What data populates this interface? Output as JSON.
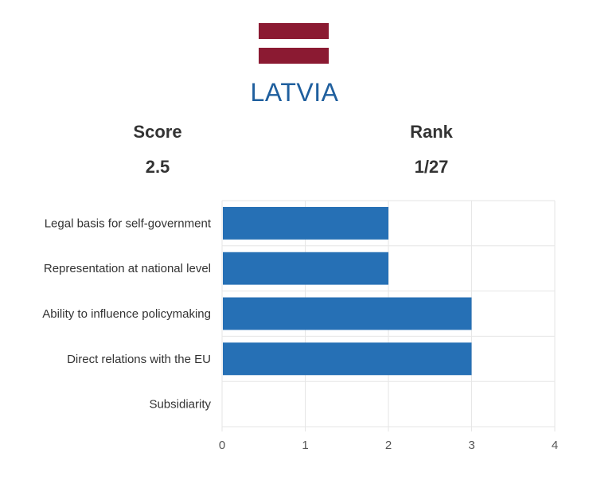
{
  "colors": {
    "flag": "#8b1a32",
    "country_title": "#1f5f9e",
    "bar": "#2670b5",
    "grid": "#e6e6e6",
    "text": "#333333",
    "tick": "#555555"
  },
  "country": "LATVIA",
  "stats": {
    "score_label": "Score",
    "score_value": "2.5",
    "rank_label": "Rank",
    "rank_value": "1/27"
  },
  "chart_data": {
    "type": "bar",
    "orientation": "horizontal",
    "categories": [
      "Legal basis for self-government",
      "Representation at national level",
      "Ability to influence policymaking",
      "Direct relations with the EU",
      "Subsidiarity"
    ],
    "values": [
      2,
      2,
      3,
      3,
      0
    ],
    "xlim": [
      0,
      4
    ],
    "xticks": [
      "0",
      "1",
      "2",
      "3",
      "4"
    ],
    "grid": true,
    "legend": "none"
  }
}
